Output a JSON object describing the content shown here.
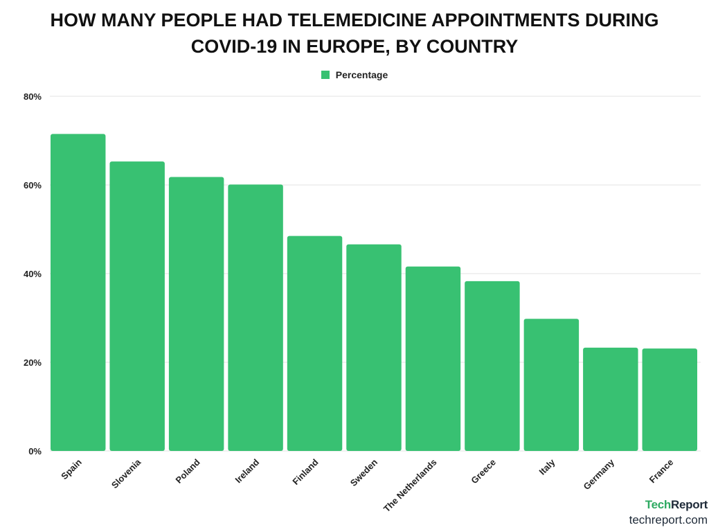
{
  "chart_data": {
    "type": "bar",
    "title_lines": [
      "HOW MANY PEOPLE HAD TELEMEDICINE APPOINTMENTS DURING",
      "COVID-19 IN EUROPE, BY COUNTRY"
    ],
    "legend": {
      "label": "Percentage",
      "position": "top-center"
    },
    "categories": [
      "Spain",
      "Slovenia",
      "Poland",
      "Ireland",
      "Finland",
      "Sweden",
      "The Netherlands",
      "Greece",
      "Italy",
      "Germany",
      "France"
    ],
    "series": [
      {
        "name": "Percentage",
        "values": [
          71.5,
          65.3,
          61.8,
          60.1,
          48.5,
          46.6,
          41.6,
          38.3,
          29.8,
          23.3,
          23.1
        ]
      }
    ],
    "y_ticks": [
      {
        "value": 0,
        "label": "0%"
      },
      {
        "value": 20,
        "label": "20%"
      },
      {
        "value": 40,
        "label": "40%"
      },
      {
        "value": 60,
        "label": "60%"
      },
      {
        "value": 80,
        "label": "80%"
      }
    ],
    "ylim": [
      0,
      80
    ],
    "grid": true,
    "colors": {
      "bar": "#38c172",
      "grid": "#e3e3e3",
      "text": "#222222"
    }
  },
  "brand": {
    "logo_part1": "Tech",
    "logo_part2": "Report",
    "url": "techreport.com"
  }
}
